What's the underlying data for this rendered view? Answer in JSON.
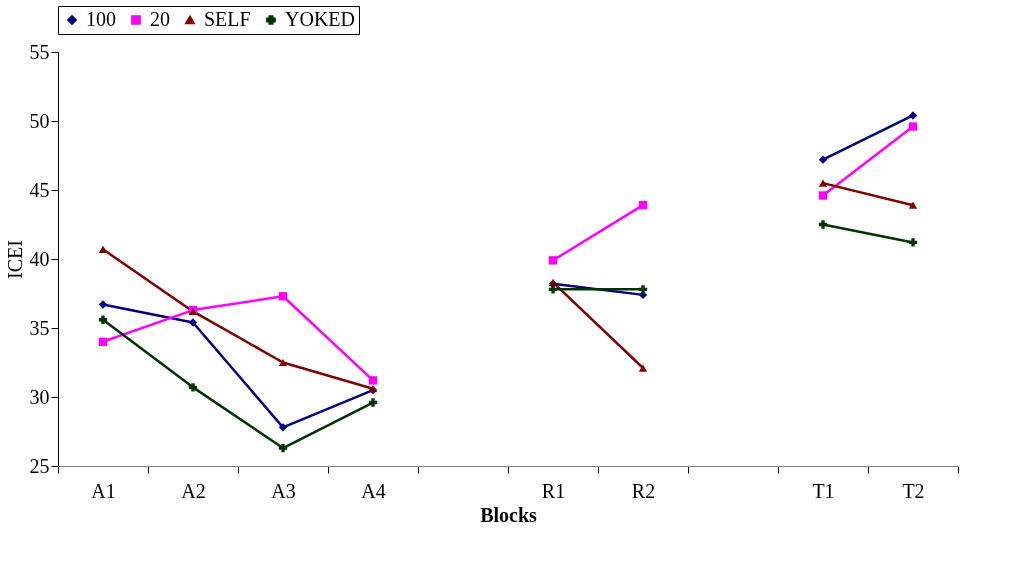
{
  "chart_data": {
    "type": "line",
    "xlabel": "Blocks",
    "ylabel": "ICEI",
    "categories": [
      "A1",
      "A2",
      "A3",
      "A4",
      null,
      "R1",
      "R2",
      null,
      "T1",
      "T2"
    ],
    "ylim": [
      25,
      55
    ],
    "yticks": [
      25,
      30,
      35,
      40,
      45,
      50,
      55
    ],
    "grid": false,
    "legend": "top",
    "series": [
      {
        "name": "100",
        "color": "#000080",
        "marker": "diamond",
        "values": [
          36.7,
          35.4,
          27.8,
          30.5,
          null,
          38.2,
          37.4,
          null,
          47.2,
          50.4
        ]
      },
      {
        "name": "20",
        "color": "#ff00ff",
        "marker": "square",
        "values": [
          34.0,
          36.3,
          37.3,
          31.2,
          null,
          39.9,
          43.9,
          null,
          44.6,
          49.6
        ]
      },
      {
        "name": "SELF",
        "color": "#800000",
        "marker": "triangle",
        "values": [
          40.7,
          36.2,
          32.5,
          30.6,
          null,
          38.3,
          32.1,
          null,
          45.5,
          43.9
        ]
      },
      {
        "name": "YOKED",
        "color": "#003300",
        "marker": "cross",
        "values": [
          35.6,
          30.7,
          26.3,
          29.6,
          null,
          37.8,
          37.8,
          null,
          42.5,
          41.2
        ]
      }
    ]
  }
}
